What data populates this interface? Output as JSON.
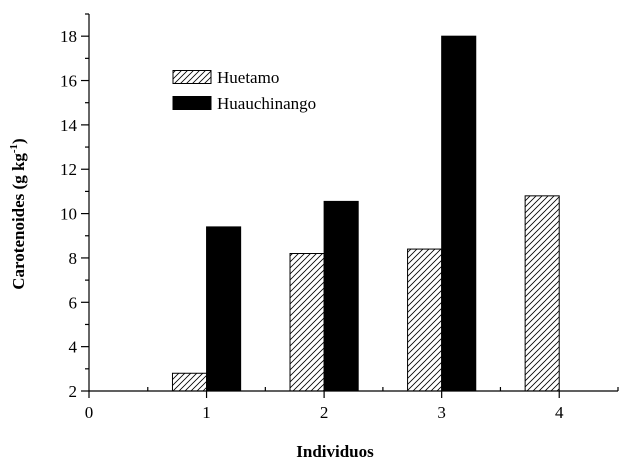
{
  "chart_data": {
    "type": "bar",
    "xlabel": "Individuos",
    "ylabel_main": "Carotenoides (g kg",
    "ylabel_sup": "-1",
    "ylabel_close": ")",
    "xlim": [
      0,
      4.5
    ],
    "ylim": [
      2,
      19
    ],
    "x_ticks": [
      "0",
      "1",
      "2",
      "3",
      "4"
    ],
    "y_ticks": [
      "2",
      "4",
      "6",
      "8",
      "10",
      "12",
      "14",
      "16",
      "18"
    ],
    "grid": false,
    "legend_position": "upper-left",
    "series": [
      {
        "name": "Huetamo",
        "pattern": "hatched",
        "color": "#000000",
        "points": [
          {
            "x": 1,
            "y": 2.8
          },
          {
            "x": 2,
            "y": 8.2
          },
          {
            "x": 3,
            "y": 8.4
          },
          {
            "x": 4,
            "y": 10.8
          }
        ]
      },
      {
        "name": "Huauchinango",
        "pattern": "solid",
        "color": "#000000",
        "points": [
          {
            "x": 1,
            "y": 9.4
          },
          {
            "x": 2,
            "y": 10.55
          },
          {
            "x": 3,
            "y": 18.0
          }
        ]
      }
    ]
  }
}
